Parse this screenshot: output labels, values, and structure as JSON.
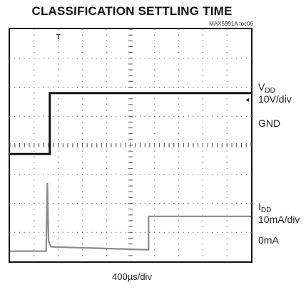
{
  "chart_data": {
    "type": "line",
    "title": "CLASSIFICATION SETTLING TIME",
    "figure_id": "MAX5991A toc06",
    "xlabel": "400µs/div",
    "grid": true,
    "x_divisions": 10,
    "y_divisions": 8,
    "trigger_marker": "T",
    "series": [
      {
        "name_main": "V",
        "name_sub": "DD",
        "scale": "10V/div",
        "ground_label": "GND",
        "color": "#111111",
        "ground_div": 3.7,
        "points": [
          [
            0,
            3.7
          ],
          [
            1.65,
            3.7
          ],
          [
            1.65,
            5.8
          ],
          [
            10,
            5.8
          ]
        ]
      },
      {
        "name_main": "I",
        "name_sub": "DD",
        "scale": "10mA/div",
        "ground_label": "0mA",
        "color": "#8a8a8a",
        "ground_div": 0.35,
        "points": [
          [
            0,
            0.35
          ],
          [
            1.5,
            0.35
          ],
          [
            1.55,
            2.7
          ],
          [
            1.6,
            0.7
          ],
          [
            1.7,
            0.5
          ],
          [
            5.75,
            0.4
          ],
          [
            5.75,
            1.55
          ],
          [
            10,
            1.55
          ]
        ]
      }
    ]
  }
}
